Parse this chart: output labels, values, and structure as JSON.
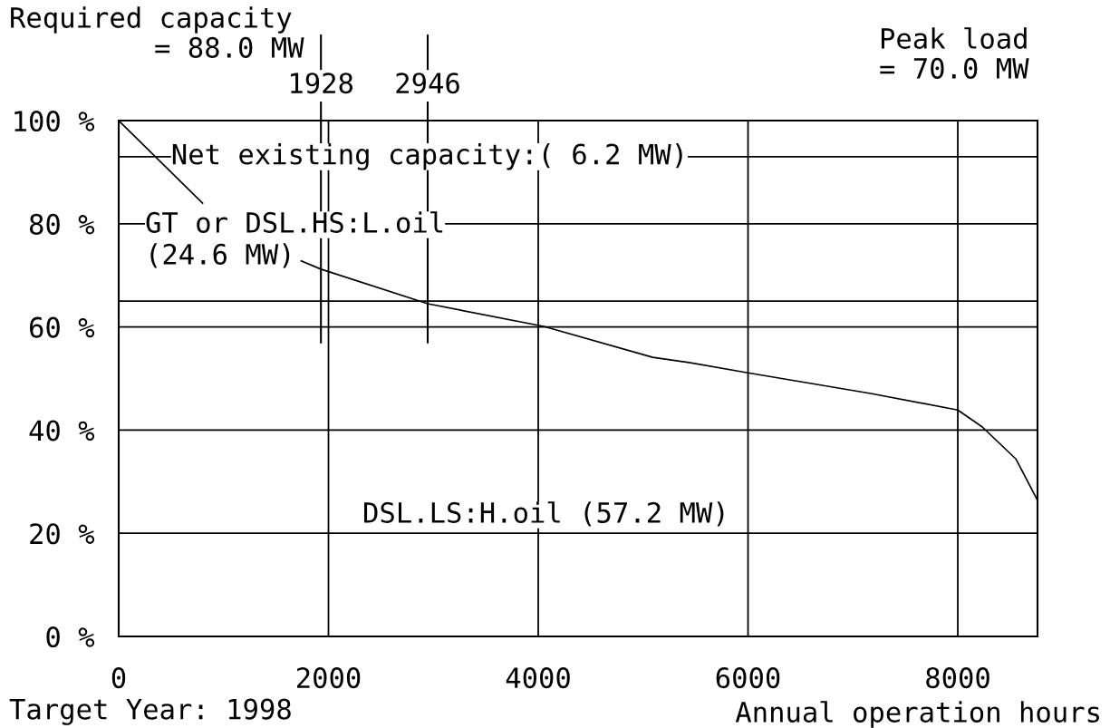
{
  "chart_data": {
    "type": "line",
    "xlabel": "Annual operation hours",
    "x": [
      0,
      800,
      1000,
      1740,
      1928,
      2946,
      4052,
      5091,
      5437,
      6000,
      7169,
      8000,
      8234,
      8554,
      8760
    ],
    "series": [
      {
        "color": "#000000",
        "values": [
          100,
          84,
          null,
          72.8,
          71.2,
          64.5,
          60.1,
          54.1,
          53.1,
          51.1,
          47.1,
          43.9,
          40.6,
          34.4,
          26.4
        ]
      }
    ],
    "xlim": [
      0,
      8760
    ],
    "xticks": [
      0,
      2000,
      4000,
      6000,
      8000
    ],
    "ylim": [
      0,
      100
    ],
    "yticks": [
      {
        "value": 0,
        "label": "0 %"
      },
      {
        "value": 20,
        "label": "20 %"
      },
      {
        "value": 40,
        "label": "40 %"
      },
      {
        "value": 60,
        "label": "60 %"
      },
      {
        "value": 80,
        "label": "80 %"
      },
      {
        "value": 100,
        "label": "100 %"
      }
    ],
    "grid": true,
    "marker": "none",
    "line_style": "solid",
    "ref_lines": [
      {
        "axis": "x",
        "value": 1928,
        "label": "1928",
        "color": "#000000"
      },
      {
        "axis": "x",
        "value": 2946,
        "label": "2946",
        "color": "#000000"
      },
      {
        "axis": "y",
        "value": 93,
        "label": "Net existing capacity:( 6.2 MW)",
        "color": "#000000"
      },
      {
        "axis": "y",
        "value": 65,
        "label": null,
        "color": "#000000"
      }
    ],
    "annotations": [
      "Required capacity\n= 88.0 MW",
      "Peak load\n= 70.0 MW",
      "Target Year: 1998",
      "GT or DSL.HS:L.oil\n(24.6 MW)",
      "DSL.LS:H.oil (57.2 MW)"
    ]
  }
}
